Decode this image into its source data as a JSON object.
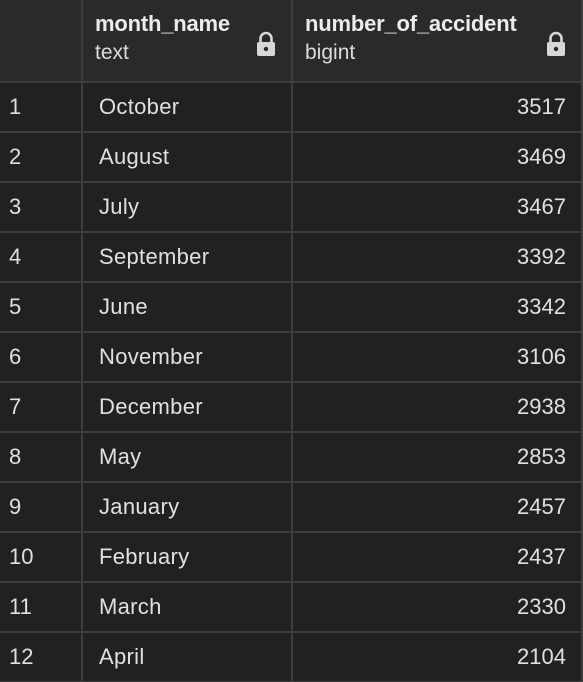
{
  "columns": [
    {
      "name": "month_name",
      "type": "text",
      "icon": "lock-icon"
    },
    {
      "name": "number_of_accident",
      "type": "bigint",
      "icon": "lock-icon"
    }
  ],
  "rows": [
    {
      "n": "1",
      "month": "October",
      "count": "3517"
    },
    {
      "n": "2",
      "month": "August",
      "count": "3469"
    },
    {
      "n": "3",
      "month": "July",
      "count": "3467"
    },
    {
      "n": "4",
      "month": "September",
      "count": "3392"
    },
    {
      "n": "5",
      "month": "June",
      "count": "3342"
    },
    {
      "n": "6",
      "month": "November",
      "count": "3106"
    },
    {
      "n": "7",
      "month": "December",
      "count": "2938"
    },
    {
      "n": "8",
      "month": "May",
      "count": "2853"
    },
    {
      "n": "9",
      "month": "January",
      "count": "2457"
    },
    {
      "n": "10",
      "month": "February",
      "count": "2437"
    },
    {
      "n": "11",
      "month": "March",
      "count": "2330"
    },
    {
      "n": "12",
      "month": "April",
      "count": "2104"
    }
  ],
  "colors": {
    "background": "#212121",
    "header_background": "#2a2a2a",
    "grid_line": "#3d3d3d",
    "text": "#e0e0e0"
  }
}
